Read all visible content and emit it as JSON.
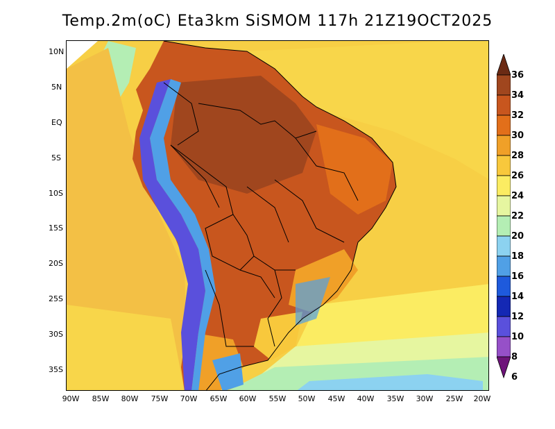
{
  "title": "Temp.2m(oC) Eta3km SiSMOM 117h 21Z19OCT2025",
  "lat_labels": [
    "10N",
    "5N",
    "EQ",
    "5S",
    "10S",
    "15S",
    "20S",
    "25S",
    "30S",
    "35S"
  ],
  "lon_labels": [
    "90W",
    "85W",
    "80W",
    "75W",
    "70W",
    "65W",
    "60W",
    "55W",
    "50W",
    "45W",
    "40W",
    "35W",
    "30W",
    "25W",
    "20W"
  ],
  "colorbar": {
    "labels": [
      "36",
      "34",
      "32",
      "30",
      "28",
      "26",
      "24",
      "22",
      "20",
      "18",
      "16",
      "14",
      "12",
      "10",
      "8",
      "6"
    ],
    "colors": [
      "#6b2a14",
      "#a0461e",
      "#c8561e",
      "#e26f1a",
      "#f0a028",
      "#f8c83c",
      "#fbec62",
      "#e6f6a0",
      "#b4eeb4",
      "#8cd2f0",
      "#50a0e6",
      "#1e5adc",
      "#1428b4",
      "#5a50dc",
      "#9650c8",
      "#6e147a"
    ]
  },
  "map_colors": {
    "ocean_warm": "#f3c045",
    "ocean_mid": "#f8d64a",
    "ocean_cool": "#fbec62",
    "ocean_cold": "#b4eeb4",
    "land_hot": "#c8561e",
    "land_very_hot": "#a0461e",
    "land_warm": "#e26f1a",
    "andes_cold": "#5a50dc",
    "andes_cool": "#50a0e6",
    "south_cool": "#8cd2f0"
  }
}
